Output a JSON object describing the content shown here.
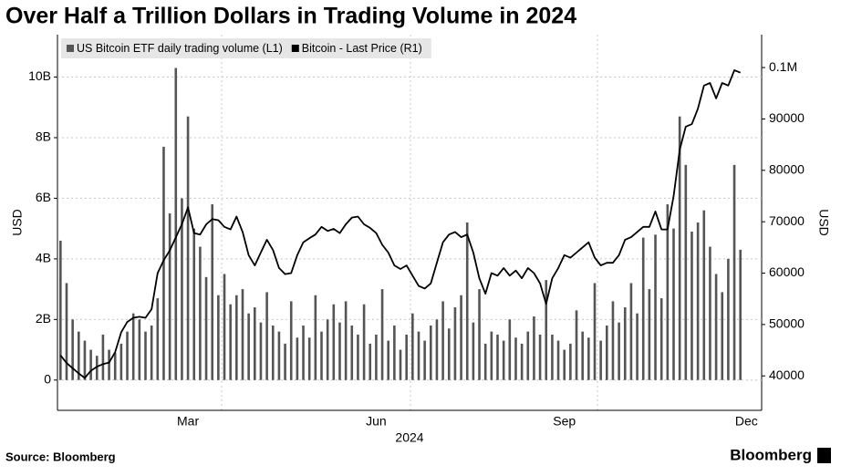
{
  "chart_data": {
    "type": "bar",
    "title": "Over Half a Trillion Dollars in Trading Volume in 2024",
    "xlabel": "2024",
    "ylabel": "USD",
    "y2label": "USD",
    "source": "Source: Bloomberg",
    "brand": "Bloomberg",
    "grid": true,
    "legend": "top-left",
    "categories": [
      null,
      null,
      null,
      null,
      null,
      null,
      null,
      null,
      null,
      null,
      null,
      null,
      null,
      null,
      null,
      null,
      null,
      null,
      null,
      null,
      null,
      "Mar",
      null,
      null,
      null,
      null,
      null,
      null,
      null,
      null,
      null,
      null,
      null,
      null,
      null,
      null,
      null,
      null,
      null,
      null,
      null,
      null,
      null,
      null,
      null,
      null,
      null,
      null,
      null,
      null,
      null,
      null,
      "Jun",
      null,
      null,
      null,
      null,
      null,
      null,
      null,
      null,
      null,
      null,
      null,
      null,
      null,
      null,
      null,
      null,
      null,
      null,
      null,
      null,
      null,
      null,
      null,
      null,
      null,
      null,
      null,
      null,
      null,
      null,
      "Sep",
      null,
      null,
      null,
      null,
      null,
      null,
      null,
      null,
      null,
      null,
      null,
      null,
      null,
      null,
      null,
      null,
      null,
      null,
      null,
      null,
      null,
      null,
      null,
      null,
      null,
      null,
      null,
      null,
      null,
      "Dec",
      null,
      null
    ],
    "ylim": [
      -1000000000.0,
      11400000000.0
    ],
    "yticks": [
      0,
      {
        "value": 2000000000.0,
        "label": "2B"
      },
      {
        "value": 4000000000.0,
        "label": "4B"
      },
      {
        "value": 6000000000.0,
        "label": "6B"
      },
      {
        "value": 8000000000.0,
        "label": "8B"
      },
      {
        "value": 10000000000.0,
        "label": "10B"
      }
    ],
    "y2lim": [
      33300,
      106400
    ],
    "y2ticks": [
      40000,
      50000,
      60000,
      70000,
      80000,
      90000,
      {
        "value": 100000,
        "label": "0.1M"
      }
    ],
    "series": [
      {
        "name": "US Bitcoin ETF daily trading volume (L1)",
        "type": "bar",
        "color": "#555555",
        "values": [
          4600000000.0,
          3200000000.0,
          2000000000.0,
          1600000000.0,
          1300000000.0,
          1000000000.0,
          800000000.0,
          1500000000.0,
          1000000000.0,
          900000000.0,
          1200000000.0,
          1600000000.0,
          2200000000.0,
          2000000000.0,
          1600000000.0,
          1800000000.0,
          2700000000.0,
          7700000000.0,
          5500000000.0,
          10300000000.0,
          6000000000.0,
          8700000000.0,
          5000000000.0,
          4400000000.0,
          3400000000.0,
          5800000000.0,
          2800000000.0,
          3500000000.0,
          2500000000.0,
          2800000000.0,
          3000000000.0,
          2200000000.0,
          2400000000.0,
          1900000000.0,
          2900000000.0,
          1800000000.0,
          1600000000.0,
          1200000000.0,
          2600000000.0,
          1400000000.0,
          1800000000.0,
          1400000000.0,
          2800000000.0,
          1600000000.0,
          2000000000.0,
          2500000000.0,
          1900000000.0,
          2600000000.0,
          1800000000.0,
          1500000000.0,
          2500000000.0,
          1200000000.0,
          1500000000.0,
          3000000000.0,
          1300000000.0,
          1800000000.0,
          1000000000.0,
          1500000000.0,
          2200000000.0,
          1600000000.0,
          1300000000.0,
          1800000000.0,
          2000000000.0,
          2600000000.0,
          1700000000.0,
          2400000000.0,
          2800000000.0,
          5200000000.0,
          1900000000.0,
          3000000000.0,
          1200000000.0,
          1600000000.0,
          1500000000.0,
          1300000000.0,
          2000000000.0,
          1400000000.0,
          1200000000.0,
          1600000000.0,
          2100000000.0,
          1500000000.0,
          3300000000.0,
          1500000000.0,
          1300000000.0,
          1000000000.0,
          1200000000.0,
          2300000000.0,
          1600000000.0,
          1400000000.0,
          3200000000.0,
          1300000000.0,
          1800000000.0,
          2600000000.0,
          1900000000.0,
          2400000000.0,
          3200000000.0,
          2200000000.0,
          4700000000.0,
          3000000000.0,
          4800000000.0,
          2700000000.0,
          5800000000.0,
          5000000000.0,
          8700000000.0,
          7100000000.0,
          4900000000.0,
          5200000000.0,
          5600000000.0,
          4400000000.0,
          3500000000.0,
          2900000000.0,
          4000000000.0,
          7100000000.0,
          4300000000.0,
          null,
          null,
          null
        ]
      },
      {
        "name": "Bitcoin - Last Price (R1)",
        "type": "line",
        "axis": "y2",
        "color": "#000000",
        "values": [
          44000,
          42500,
          41500,
          40500,
          39600,
          41000,
          41800,
          42300,
          42600,
          44600,
          48500,
          50500,
          51300,
          51500,
          51300,
          53000,
          60000,
          62500,
          64400,
          67000,
          69500,
          72800,
          67800,
          67500,
          69500,
          70500,
          70300,
          69000,
          68500,
          71000,
          68000,
          63500,
          61500,
          64000,
          66500,
          64500,
          61000,
          59800,
          60000,
          63500,
          66000,
          66800,
          67500,
          69000,
          68200,
          68600,
          67800,
          69500,
          70800,
          71000,
          69500,
          68800,
          67800,
          65500,
          64000,
          61500,
          60800,
          61500,
          59500,
          57500,
          57000,
          58000,
          62000,
          66000,
          67500,
          68000,
          67000,
          67500,
          64000,
          59000,
          56000,
          60000,
          59500,
          61000,
          59500,
          60500,
          59000,
          61000,
          60000,
          58000,
          54000,
          59000,
          61000,
          63500,
          63000,
          64000,
          65000,
          66000,
          63000,
          61500,
          62000,
          62000,
          63500,
          66500,
          67000,
          68000,
          69000,
          69000,
          72000,
          68500,
          68500,
          75000,
          84000,
          88500,
          89000,
          92000,
          96500,
          97000,
          94000,
          97000,
          96500,
          99500,
          99000,
          null,
          null,
          null
        ]
      }
    ]
  }
}
